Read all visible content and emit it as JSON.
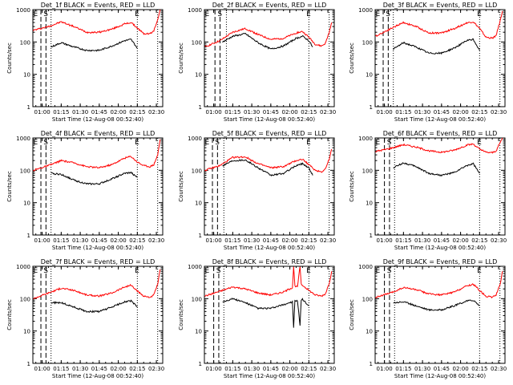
{
  "chart_data": [
    {
      "type": "line",
      "title": "Det_1f BLACK = Events, RED = LLD",
      "xlabel": "Start Time (12-Aug-08 00:52:40)",
      "ylabel": "Counts/sec",
      "y_scale": "log",
      "ylim": [
        1,
        1000
      ],
      "xlim": [
        "00:52:40",
        "02:35:00"
      ],
      "x_ticks": [
        "01:00",
        "01:15",
        "01:30",
        "01:45",
        "02:00",
        "02:15",
        "02:30"
      ],
      "y_ticks": [
        "1",
        "10",
        "100",
        "1000"
      ],
      "vlines": {
        "dashed": [
          "00:59",
          "01:03"
        ],
        "dotted": [
          "01:07",
          "02:15",
          "02:31"
        ]
      },
      "markers": [
        {
          "text": "E",
          "x": "00:53"
        },
        {
          "text": "S",
          "x": "01:01"
        },
        {
          "text": "E",
          "x": "02:13"
        }
      ],
      "series": [
        {
          "color": "#ff0000",
          "x": [
            "00:53",
            "01:05",
            "01:15",
            "01:25",
            "01:35",
            "01:45",
            "01:55",
            "02:05",
            "02:10",
            "02:15",
            "02:20",
            "02:25",
            "02:28",
            "02:31",
            "02:33"
          ],
          "y": [
            230,
            300,
            420,
            300,
            200,
            200,
            250,
            360,
            400,
            270,
            180,
            180,
            220,
            500,
            1000
          ]
        },
        {
          "color": "#000000",
          "x": [
            "01:07",
            "01:15",
            "01:25",
            "01:35",
            "01:45",
            "01:55",
            "02:05",
            "02:10",
            "02:15"
          ],
          "y": [
            70,
            95,
            70,
            55,
            55,
            75,
            110,
            120,
            65
          ]
        }
      ]
    },
    {
      "type": "line",
      "title": "Det_2f BLACK = Events, RED = LLD",
      "xlabel": "Start Time (12-Aug-08 00:52:40)",
      "ylabel": "Counts/sec",
      "y_scale": "log",
      "ylim": [
        1,
        1000
      ],
      "xlim": [
        "00:52:40",
        "02:35:00"
      ],
      "x_ticks": [
        "01:00",
        "01:15",
        "01:30",
        "01:45",
        "02:00",
        "02:15",
        "02:30"
      ],
      "y_ticks": [
        "1",
        "10",
        "100",
        "1000"
      ],
      "vlines": {
        "dashed": [
          "01:01",
          "01:05"
        ],
        "dotted": [
          "01:10",
          "02:15",
          "02:31"
        ]
      },
      "markers": [
        {
          "text": "E",
          "x": "00:53"
        },
        {
          "text": "S",
          "x": "01:03"
        },
        {
          "text": "E",
          "x": "02:13"
        }
      ],
      "series": [
        {
          "color": "#ff0000",
          "x": [
            "00:53",
            "01:05",
            "01:15",
            "01:25",
            "01:35",
            "01:45",
            "01:55",
            "02:05",
            "02:10",
            "02:15",
            "02:20",
            "02:25",
            "02:28",
            "02:31",
            "02:33"
          ],
          "y": [
            70,
            110,
            200,
            260,
            170,
            120,
            130,
            190,
            210,
            140,
            85,
            75,
            90,
            200,
            400
          ]
        },
        {
          "color": "#000000",
          "x": [
            "01:07",
            "01:15",
            "01:25",
            "01:35",
            "01:45",
            "01:55",
            "02:05",
            "02:10",
            "02:15",
            "02:18"
          ],
          "y": [
            100,
            150,
            180,
            95,
            60,
            75,
            130,
            150,
            110,
            70
          ]
        }
      ]
    },
    {
      "type": "line",
      "title": "Det_3f BLACK = Events, RED = LLD",
      "xlabel": "Start Time (12-Aug-08 00:52:40)",
      "ylabel": "Counts/sec",
      "y_scale": "log",
      "ylim": [
        1,
        1000
      ],
      "xlim": [
        "00:52:40",
        "02:35:00"
      ],
      "x_ticks": [
        "01:00",
        "01:15",
        "01:30",
        "01:45",
        "02:00",
        "02:15",
        "02:30"
      ],
      "y_ticks": [
        "1",
        "10",
        "100",
        "1000"
      ],
      "vlines": {
        "dashed": [
          "00:59",
          "01:03"
        ],
        "dotted": [
          "01:07",
          "02:15",
          "02:31"
        ]
      },
      "markers": [
        {
          "text": "E",
          "x": "00:53"
        },
        {
          "text": "S",
          "x": "01:01"
        },
        {
          "text": "E",
          "x": "02:13"
        }
      ],
      "series": [
        {
          "color": "#ff0000",
          "x": [
            "00:53",
            "01:05",
            "01:15",
            "01:25",
            "01:35",
            "01:45",
            "01:55",
            "02:05",
            "02:10",
            "02:15",
            "02:20",
            "02:25",
            "02:28",
            "02:31",
            "02:33"
          ],
          "y": [
            150,
            260,
            400,
            300,
            190,
            190,
            260,
            390,
            420,
            260,
            140,
            130,
            160,
            420,
            900
          ]
        },
        {
          "color": "#000000",
          "x": [
            "01:07",
            "01:15",
            "01:25",
            "01:35",
            "01:45",
            "01:55",
            "02:05",
            "02:10",
            "02:15"
          ],
          "y": [
            60,
            95,
            70,
            45,
            45,
            65,
            110,
            120,
            55
          ]
        }
      ]
    },
    {
      "type": "line",
      "title": "Det_4f BLACK = Events, RED = LLD",
      "xlabel": "Start Time (12-Aug-08 00:52:40)",
      "ylabel": "Counts/sec",
      "y_scale": "log",
      "ylim": [
        1,
        1000
      ],
      "xlim": [
        "00:52:40",
        "02:35:00"
      ],
      "x_ticks": [
        "01:00",
        "01:15",
        "01:30",
        "01:45",
        "02:00",
        "02:15",
        "02:30"
      ],
      "y_ticks": [
        "1",
        "10",
        "100",
        "1000"
      ],
      "vlines": {
        "dashed": [
          "00:59",
          "01:03"
        ],
        "dotted": [
          "01:07",
          "02:15",
          "02:31"
        ]
      },
      "markers": [
        {
          "text": "E",
          "x": "00:53"
        },
        {
          "text": "S",
          "x": "01:01"
        },
        {
          "text": "E",
          "x": "02:13"
        }
      ],
      "series": [
        {
          "color": "#ff0000",
          "x": [
            "00:53",
            "01:05",
            "01:15",
            "01:25",
            "01:35",
            "01:45",
            "01:55",
            "02:05",
            "02:10",
            "02:15",
            "02:20",
            "02:25",
            "02:28",
            "02:31",
            "02:33"
          ],
          "y": [
            100,
            140,
            200,
            170,
            130,
            120,
            150,
            240,
            270,
            180,
            140,
            130,
            150,
            300,
            900
          ]
        },
        {
          "color": "#000000",
          "x": [
            "01:07",
            "01:15",
            "01:25",
            "01:35",
            "01:45",
            "01:55",
            "02:05",
            "02:10",
            "02:15"
          ],
          "y": [
            80,
            75,
            50,
            38,
            38,
            55,
            80,
            85,
            60
          ]
        }
      ]
    },
    {
      "type": "line",
      "title": "Det_5f BLACK = Events, RED = LLD",
      "xlabel": "Start Time (12-Aug-08 00:52:40)",
      "ylabel": "Counts/sec",
      "y_scale": "log",
      "ylim": [
        1,
        1000
      ],
      "xlim": [
        "00:52:40",
        "02:35:00"
      ],
      "x_ticks": [
        "01:00",
        "01:15",
        "01:30",
        "01:45",
        "02:00",
        "02:15",
        "02:30"
      ],
      "y_ticks": [
        "1",
        "10",
        "100",
        "1000"
      ],
      "vlines": {
        "dashed": [
          "00:59",
          "01:03"
        ],
        "dotted": [
          "01:08",
          "02:15",
          "02:31"
        ]
      },
      "markers": [
        {
          "text": "E",
          "x": "00:53"
        },
        {
          "text": "S",
          "x": "01:01"
        },
        {
          "text": "E",
          "x": "02:13"
        }
      ],
      "series": [
        {
          "color": "#ff0000",
          "x": [
            "00:53",
            "01:05",
            "01:15",
            "01:25",
            "01:35",
            "01:45",
            "01:55",
            "02:05",
            "02:10",
            "02:15",
            "02:20",
            "02:25",
            "02:28",
            "02:31",
            "02:33"
          ],
          "y": [
            100,
            140,
            250,
            260,
            160,
            120,
            130,
            200,
            220,
            150,
            100,
            90,
            110,
            220,
            450
          ]
        },
        {
          "color": "#000000",
          "x": [
            "01:07",
            "01:15",
            "01:25",
            "01:35",
            "01:45",
            "01:55",
            "02:05",
            "02:10",
            "02:15",
            "02:18"
          ],
          "y": [
            140,
            200,
            210,
            120,
            70,
            80,
            140,
            160,
            120,
            70
          ]
        }
      ]
    },
    {
      "type": "line",
      "title": "Det_6f BLACK = Events, RED = LLD",
      "xlabel": "Start Time (12-Aug-08 00:52:40)",
      "ylabel": "Counts/sec",
      "y_scale": "log",
      "ylim": [
        1,
        1000
      ],
      "xlim": [
        "00:52:40",
        "02:35:00"
      ],
      "x_ticks": [
        "01:00",
        "01:15",
        "01:30",
        "01:45",
        "02:00",
        "02:15",
        "02:30"
      ],
      "y_ticks": [
        "1",
        "10",
        "100",
        "1000"
      ],
      "vlines": {
        "dashed": [
          "01:00",
          "01:04"
        ],
        "dotted": [
          "01:08",
          "02:15",
          "02:31"
        ]
      },
      "markers": [
        {
          "text": "E",
          "x": "00:53"
        },
        {
          "text": "S",
          "x": "01:02"
        },
        {
          "text": "E",
          "x": "02:13"
        }
      ],
      "series": [
        {
          "color": "#ff0000",
          "x": [
            "00:53",
            "01:05",
            "01:15",
            "01:25",
            "01:35",
            "01:45",
            "01:55",
            "02:05",
            "02:10",
            "02:15",
            "02:20",
            "02:25",
            "02:28",
            "02:31",
            "02:33"
          ],
          "y": [
            380,
            480,
            620,
            520,
            400,
            360,
            420,
            600,
            650,
            450,
            360,
            350,
            400,
            700,
            1000
          ]
        },
        {
          "color": "#000000",
          "x": [
            "01:07",
            "01:15",
            "01:25",
            "01:35",
            "01:45",
            "01:55",
            "02:05",
            "02:10",
            "02:15"
          ],
          "y": [
            120,
            170,
            130,
            80,
            70,
            85,
            140,
            160,
            80
          ]
        }
      ]
    },
    {
      "type": "line",
      "title": "Det_7f BLACK = Events, RED = LLD",
      "xlabel": "Start Time (12-Aug-08 00:52:40)",
      "ylabel": "Counts/sec",
      "y_scale": "log",
      "ylim": [
        1,
        1000
      ],
      "xlim": [
        "00:52:40",
        "02:35:00"
      ],
      "x_ticks": [
        "01:00",
        "01:15",
        "01:30",
        "01:45",
        "02:00",
        "02:15",
        "02:30"
      ],
      "y_ticks": [
        "1",
        "10",
        "100",
        "1000"
      ],
      "vlines": {
        "dashed": [
          "00:59",
          "01:03"
        ],
        "dotted": [
          "01:07",
          "02:15",
          "02:31"
        ]
      },
      "markers": [
        {
          "text": "E",
          "x": "00:53"
        },
        {
          "text": "S",
          "x": "01:01"
        },
        {
          "text": "E",
          "x": "02:13"
        }
      ],
      "series": [
        {
          "color": "#ff0000",
          "x": [
            "00:53",
            "01:05",
            "01:15",
            "01:25",
            "01:35",
            "01:45",
            "01:55",
            "02:05",
            "02:10",
            "02:15",
            "02:20",
            "02:25",
            "02:28",
            "02:31",
            "02:33"
          ],
          "y": [
            100,
            150,
            210,
            180,
            130,
            120,
            150,
            230,
            260,
            170,
            120,
            110,
            130,
            280,
            800
          ]
        },
        {
          "color": "#000000",
          "x": [
            "01:07",
            "01:15",
            "01:25",
            "01:35",
            "01:45",
            "01:55",
            "02:05",
            "02:10",
            "02:15"
          ],
          "y": [
            75,
            75,
            55,
            40,
            40,
            55,
            80,
            85,
            55
          ]
        }
      ]
    },
    {
      "type": "line",
      "title": "Det_8f BLACK = Events, RED = LLD",
      "xlabel": "Start Time (12-Aug-08 00:52:40)",
      "ylabel": "Counts/sec",
      "y_scale": "log",
      "ylim": [
        1,
        1000
      ],
      "xlim": [
        "00:52:40",
        "02:35:00"
      ],
      "x_ticks": [
        "01:00",
        "01:15",
        "01:30",
        "01:45",
        "02:00",
        "02:15",
        "02:30"
      ],
      "y_ticks": [
        "1",
        "10",
        "100",
        "1000"
      ],
      "vlines": {
        "dashed": [
          "01:00",
          "01:04"
        ],
        "dotted": [
          "01:08",
          "02:15",
          "02:31"
        ]
      },
      "markers": [
        {
          "text": "E",
          "x": "00:53"
        },
        {
          "text": "S",
          "x": "01:02"
        },
        {
          "text": "E",
          "x": "02:13"
        }
      ],
      "series": [
        {
          "color": "#ff0000",
          "x": [
            "00:53",
            "01:05",
            "01:15",
            "01:25",
            "01:35",
            "01:45",
            "01:55",
            "02:02",
            "02:03",
            "02:04",
            "02:06",
            "02:08",
            "02:09",
            "02:10",
            "02:15",
            "02:20",
            "02:25",
            "02:28",
            "02:31",
            "02:33"
          ],
          "y": [
            120,
            170,
            230,
            200,
            150,
            130,
            160,
            220,
            1000,
            250,
            230,
            1000,
            270,
            260,
            180,
            130,
            120,
            140,
            300,
            700
          ]
        },
        {
          "color": "#000000",
          "x": [
            "01:07",
            "01:15",
            "01:25",
            "01:35",
            "01:45",
            "01:55",
            "02:02",
            "02:03",
            "02:04",
            "02:06",
            "02:08",
            "02:09",
            "02:10",
            "02:15"
          ],
          "y": [
            80,
            100,
            75,
            50,
            50,
            65,
            80,
            12,
            85,
            85,
            15,
            90,
            95,
            60
          ]
        }
      ]
    },
    {
      "type": "line",
      "title": "Det_9f BLACK = Events, RED = LLD",
      "xlabel": "Start Time (12-Aug-08 00:52:40)",
      "ylabel": "Counts/sec",
      "y_scale": "log",
      "ylim": [
        1,
        1000
      ],
      "xlim": [
        "00:52:40",
        "02:35:00"
      ],
      "x_ticks": [
        "01:00",
        "01:15",
        "01:30",
        "01:45",
        "02:00",
        "02:15",
        "02:30"
      ],
      "y_ticks": [
        "1",
        "10",
        "100",
        "1000"
      ],
      "vlines": {
        "dashed": [
          "01:00",
          "01:04"
        ],
        "dotted": [
          "01:08",
          "02:15",
          "02:31"
        ]
      },
      "markers": [
        {
          "text": "E",
          "x": "00:53"
        },
        {
          "text": "S",
          "x": "01:02"
        },
        {
          "text": "E",
          "x": "02:13"
        }
      ],
      "series": [
        {
          "color": "#ff0000",
          "x": [
            "00:53",
            "01:05",
            "01:15",
            "01:25",
            "01:35",
            "01:45",
            "01:55",
            "02:05",
            "02:10",
            "02:15",
            "02:20",
            "02:25",
            "02:28",
            "02:31",
            "02:33"
          ],
          "y": [
            110,
            150,
            220,
            190,
            140,
            130,
            160,
            250,
            280,
            180,
            120,
            110,
            130,
            260,
            700
          ]
        },
        {
          "color": "#000000",
          "x": [
            "01:07",
            "01:15",
            "01:25",
            "01:35",
            "01:45",
            "01:55",
            "02:05",
            "02:10",
            "02:15"
          ],
          "y": [
            75,
            80,
            60,
            45,
            45,
            60,
            85,
            90,
            60
          ]
        }
      ]
    }
  ]
}
